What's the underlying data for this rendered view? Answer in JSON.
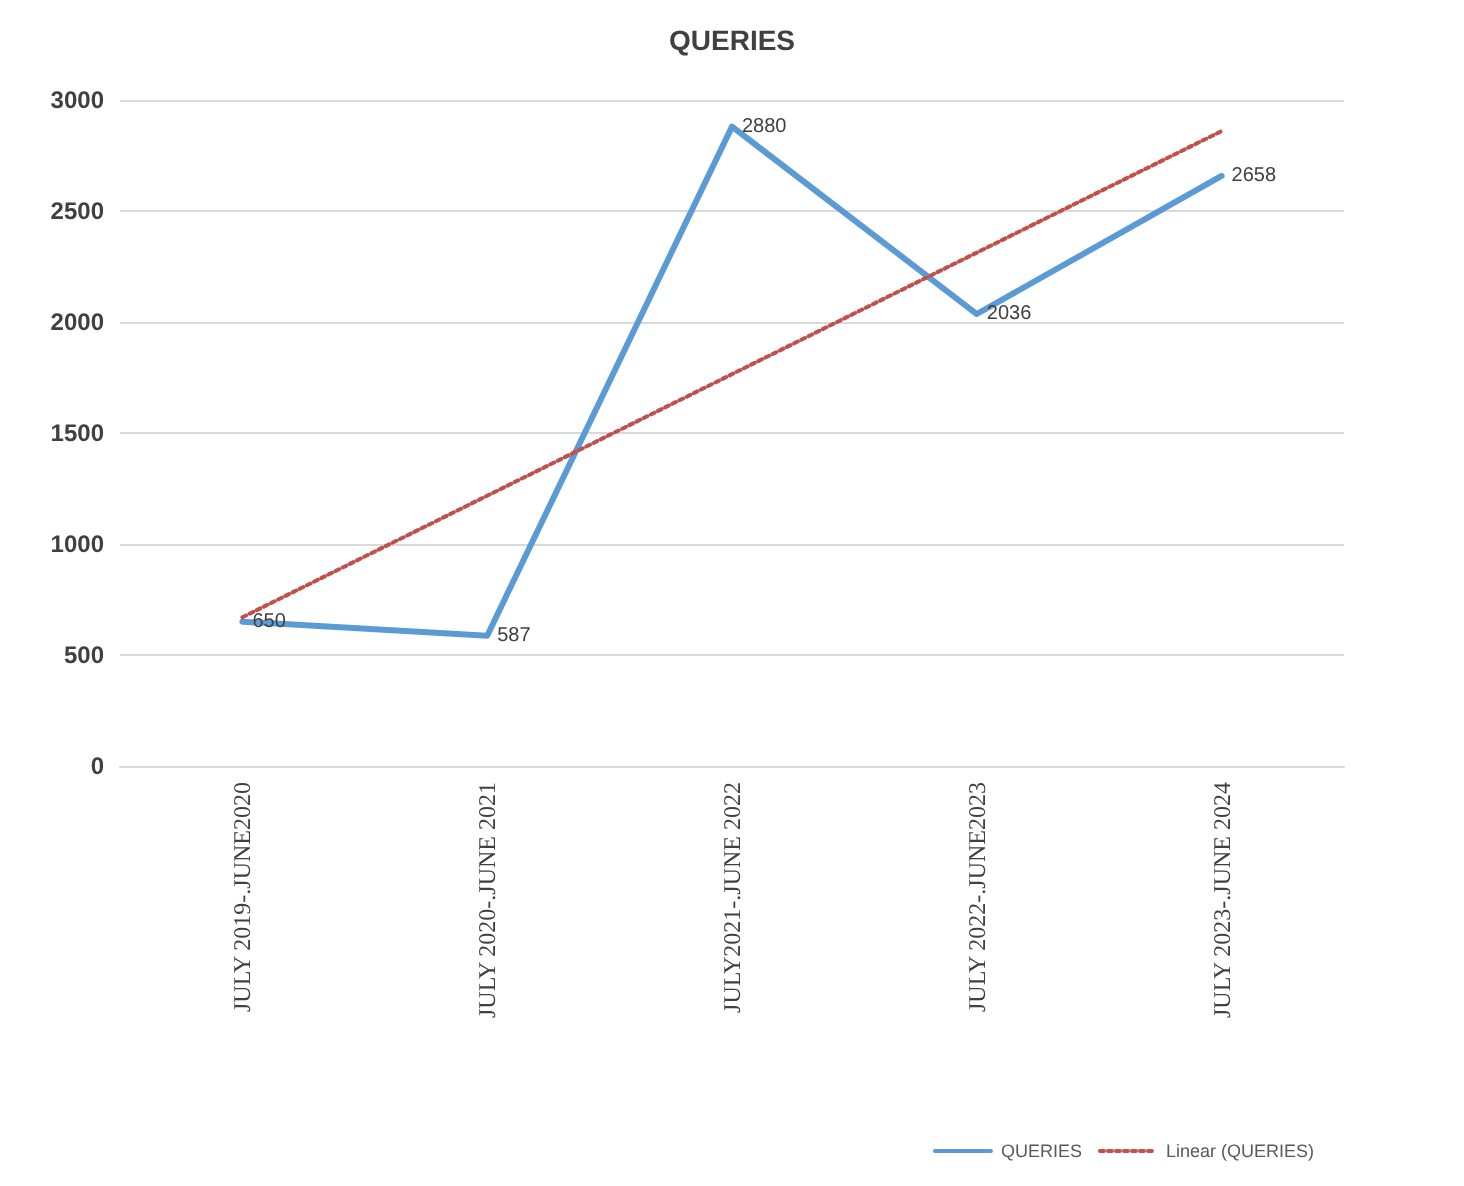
{
  "chart_data": {
    "type": "line",
    "title": "QUERIES",
    "categories": [
      "JULY 2019-.JUNE2020",
      "JULY 2020-.JUNE 2021",
      "JULY2021-.JUNE 2022",
      "JULY 2022-.JUNE2023",
      "JULY 2023-.JUNE 2024"
    ],
    "series": [
      {
        "name": "QUERIES",
        "color": "#5b9bd5",
        "values": [
          650,
          587,
          2880,
          2036,
          2658
        ],
        "value_labels": [
          "650",
          "587",
          "2880",
          "2036",
          "2658"
        ],
        "line_style": "solid"
      },
      {
        "name": "Linear (QUERIES)",
        "color": "#c0504d",
        "type": "line",
        "x": [
          "JULY 2019-.JUNE2020",
          "JULY 2023-.JUNE 2024"
        ],
        "values": [
          670,
          2860
        ],
        "line_style": "dotted"
      }
    ],
    "ylim": [
      0,
      3000
    ],
    "yticks": [
      0,
      500,
      1000,
      1500,
      2000,
      2500,
      3000
    ],
    "grid": "y",
    "legend": "bottom right",
    "marker": "none"
  }
}
